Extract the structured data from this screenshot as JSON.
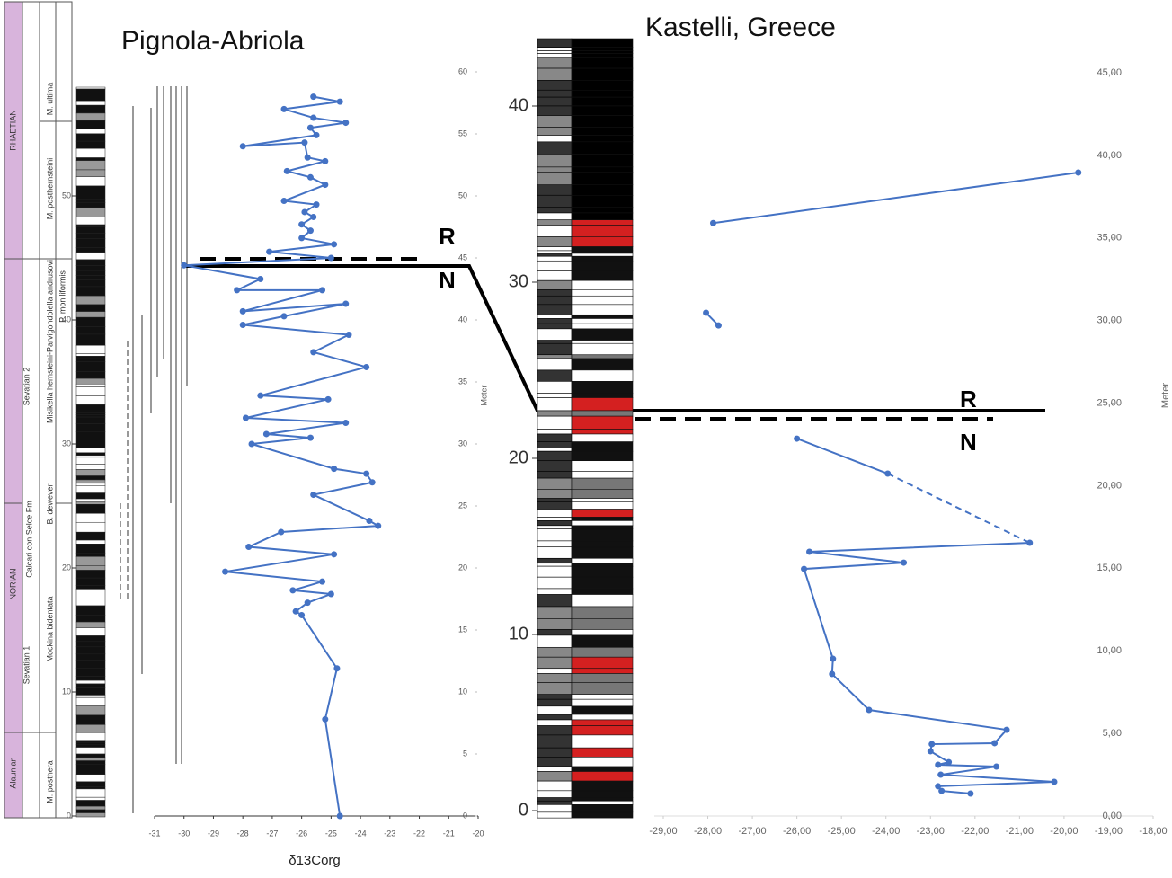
{
  "chart_data": [
    {
      "type": "line",
      "title": "Pignola-Abriola",
      "x_label": "δ13Corg",
      "y_label": "Meter",
      "annotations": [
        "R",
        "N"
      ],
      "stratigraphy": [
        "RHAETIAN",
        "NORIAN",
        "Alaunian",
        "Sevatian 1",
        "Sevatian 2",
        "Calcari con Selce Fm",
        "M. posthera",
        "Mockina bidentata",
        "B. deweveri",
        "Misikella hernsteini-Parvigondolella andrusovi",
        "P. moniliformis",
        "M. posthernsteini",
        "M. ultima"
      ],
      "xlim": [
        -31,
        -20
      ],
      "xticks": [
        -31,
        -30,
        -29,
        -28,
        -27,
        -26,
        -25,
        -24,
        -23,
        -22,
        -21,
        -20
      ],
      "ylim": [
        0,
        60
      ],
      "yticks": [
        0,
        5,
        10,
        15,
        20,
        25,
        30,
        35,
        40,
        45,
        50,
        55,
        60
      ],
      "column_yticks": [
        0,
        10,
        20,
        30,
        40,
        50
      ],
      "series": [
        {
          "color": "#4472c4",
          "x": [
            -25.6,
            -24.7,
            -26.6,
            -25.6,
            -24.5,
            -25.7,
            -25.5,
            -28.0,
            -25.9,
            -25.8,
            -25.2,
            -26.5,
            -25.7,
            -25.2,
            -26.6,
            -25.5,
            -25.9,
            -25.6,
            -26.0,
            -25.7,
            -26.0,
            -24.9,
            -27.1,
            -25.0,
            -30.0,
            -27.4,
            -28.2,
            -25.3,
            -28.0,
            -24.5,
            -26.6,
            -28.0,
            -24.4,
            -25.6,
            -23.8,
            -27.4,
            -25.1,
            -27.9,
            -24.5,
            -27.2,
            -25.7,
            -27.7,
            -24.9,
            -23.8,
            -23.6,
            -25.6,
            -23.7,
            -23.4,
            -26.7,
            -27.8,
            -24.9,
            -28.6,
            -25.3,
            -26.3,
            -25.0,
            -25.8,
            -26.2,
            -26.0,
            -24.8,
            -25.2,
            -24.7
          ],
          "values": [
            58.0,
            57.6,
            57.0,
            56.3,
            55.9,
            55.5,
            54.9,
            54.0,
            54.3,
            53.1,
            52.8,
            52.0,
            51.5,
            50.9,
            49.6,
            49.3,
            48.7,
            48.3,
            47.7,
            47.2,
            46.6,
            46.1,
            45.5,
            45.0,
            44.4,
            43.3,
            42.4,
            42.4,
            40.7,
            41.3,
            40.3,
            39.6,
            38.8,
            37.4,
            36.2,
            33.9,
            33.6,
            32.1,
            31.7,
            30.8,
            30.5,
            30.0,
            28.0,
            27.6,
            26.9,
            25.9,
            23.8,
            23.4,
            22.9,
            21.7,
            21.1,
            19.7,
            18.9,
            18.2,
            17.9,
            17.2,
            16.5,
            16.2,
            11.9,
            7.8,
            0.0
          ]
        }
      ]
    },
    {
      "type": "line",
      "title": "Kastelli, Greece",
      "y_label": "Meter",
      "annotations": [
        "R",
        "N"
      ],
      "xlim": [
        -29,
        -18
      ],
      "xticks": [
        {
          "value": -29,
          "label": "-29,00"
        },
        {
          "value": -28,
          "label": "-28,00"
        },
        {
          "value": -27,
          "label": "-27,00"
        },
        {
          "value": -26,
          "label": "-26,00"
        },
        {
          "value": -25,
          "label": "-25,00"
        },
        {
          "value": -24,
          "label": "-24,00"
        },
        {
          "value": -23,
          "label": "-23,00"
        },
        {
          "value": -22,
          "label": "-22,00"
        },
        {
          "value": -21,
          "label": "-21,00"
        },
        {
          "value": -20,
          "label": "-20,00"
        },
        {
          "value": -19,
          "label": "-19,00"
        },
        {
          "value": -18,
          "label": "-18,00"
        }
      ],
      "ylim": [
        0,
        45
      ],
      "yticks": [
        {
          "value": 0,
          "label": "0,00"
        },
        {
          "value": 5,
          "label": "5,00"
        },
        {
          "value": 10,
          "label": "10,00"
        },
        {
          "value": 15,
          "label": "15,00"
        },
        {
          "value": 20,
          "label": "20,00"
        },
        {
          "value": 25,
          "label": "25,00"
        },
        {
          "value": 30,
          "label": "30,00"
        },
        {
          "value": 35,
          "label": "35,00"
        },
        {
          "value": 40,
          "label": "40,00"
        },
        {
          "value": 45,
          "label": "45,00"
        }
      ],
      "column_yticks": [
        0,
        10,
        20,
        30,
        40
      ],
      "series": [
        {
          "color": "#4472c4",
          "x": [
            -27.88,
            -19.68,
            null,
            -28.04,
            -27.76,
            null,
            -26.0,
            -23.96,
            null,
            -20.77,
            -25.72,
            -23.6,
            -25.84,
            -25.19,
            -25.21,
            -24.38,
            -21.29,
            -21.56,
            -22.97,
            -23.0,
            -22.59,
            -22.83,
            -21.52,
            -22.77,
            -20.22,
            -22.83,
            -22.75,
            -22.1
          ],
          "values": [
            35.9,
            38.96,
            null,
            30.47,
            29.7,
            null,
            22.85,
            20.73,
            null,
            16.54,
            16.0,
            15.34,
            14.96,
            9.52,
            8.6,
            6.42,
            5.22,
            4.41,
            4.35,
            3.92,
            3.26,
            3.1,
            2.99,
            2.5,
            2.07,
            1.8,
            1.52,
            1.36
          ]
        },
        {
          "color": "#4472c4",
          "dashed": true,
          "x": [
            -23.96,
            -20.77
          ],
          "values": [
            20.73,
            16.54
          ]
        }
      ]
    }
  ]
}
